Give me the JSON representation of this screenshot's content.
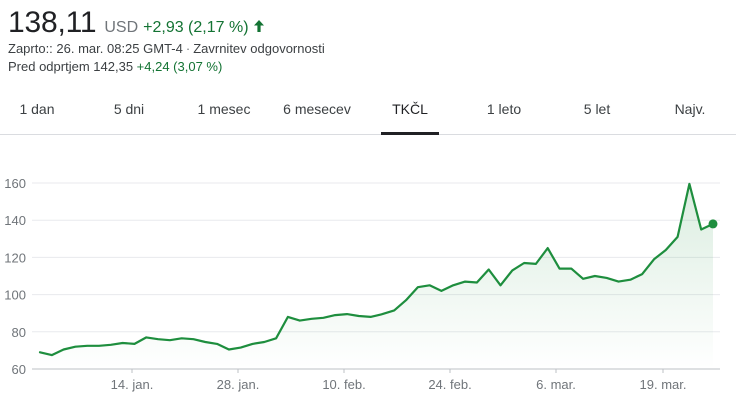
{
  "quote": {
    "price": "138,11",
    "currency": "USD",
    "change": "+2,93 (2,17 %)",
    "change_direction": "up",
    "closed_text": "Zaprto:: 26. mar. 08:25 GMT-4",
    "disclaimer_link": "Zavrnitev odgovornosti",
    "preopen_label": "Pred odprtjem",
    "preopen_price": "142,35",
    "preopen_change": "+4,24 (3,07 %)",
    "icons": {
      "change_arrow": "arrow-up-icon"
    }
  },
  "tabs": [
    {
      "label": "1 dan",
      "active": false
    },
    {
      "label": "5 dni",
      "active": false
    },
    {
      "label": "1 mesec",
      "active": false
    },
    {
      "label": "6 mesecev",
      "active": false
    },
    {
      "label": "TKČL",
      "active": true
    },
    {
      "label": "1 leto",
      "active": false
    },
    {
      "label": "5 let",
      "active": false
    },
    {
      "label": "Najv.",
      "active": false
    }
  ],
  "colors": {
    "line": "#1e8e3e",
    "positive_text": "#137333",
    "grid": "#e8eaed"
  },
  "chart_data": {
    "type": "area",
    "title": "",
    "xlabel": "",
    "ylabel": "",
    "ylim": [
      60,
      170
    ],
    "y_ticks": [
      60,
      80,
      100,
      120,
      140,
      160
    ],
    "y_tick_labels": [
      "60",
      "80",
      "100",
      "120",
      "140",
      "160"
    ],
    "x_tick_labels": [
      "14. jan.",
      "28. jan.",
      "10. feb.",
      "24. feb.",
      "6. mar.",
      "19. mar."
    ],
    "grid": true,
    "legend": "none",
    "last_point_marker": true,
    "values": [
      69,
      67.5,
      70.5,
      72,
      72.5,
      72.5,
      73,
      74,
      73.5,
      77,
      76,
      75.5,
      76.5,
      76,
      74.5,
      73.5,
      70.5,
      71.5,
      73.5,
      74.5,
      76.5,
      88,
      86,
      87,
      87.5,
      89,
      89.5,
      88.5,
      88,
      89.5,
      91.5,
      97,
      104,
      105,
      102,
      105,
      107,
      106.5,
      113.5,
      105,
      113,
      117,
      116.5,
      125,
      114,
      114,
      108.5,
      110,
      109,
      107,
      108,
      111,
      119,
      124,
      131,
      159.5,
      135,
      138
    ]
  }
}
